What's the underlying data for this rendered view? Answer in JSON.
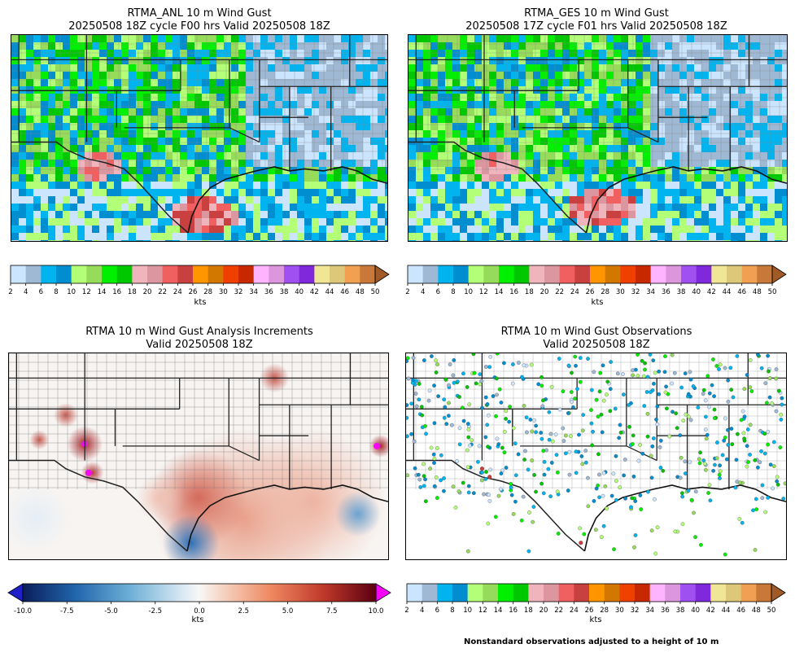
{
  "panels": [
    {
      "title_line1": "RTMA_ANL 10 m Wind Gust",
      "title_line2": "20250508 18Z cycle F00 hrs Valid 20250508 18Z"
    },
    {
      "title_line1": "RTMA_GES 10 m Wind Gust",
      "title_line2": "20250508 17Z cycle F01 hrs Valid 20250508 18Z"
    },
    {
      "title_line1": "RTMA 10 m Wind Gust Analysis Increments",
      "title_line2": "Valid 20250508 18Z"
    },
    {
      "title_line1": "RTMA 10 m Wind Gust Observations",
      "title_line2": "Valid 20250508 18Z"
    }
  ],
  "colorbar_units": "kts",
  "footnote": "Nonstandard observations adjusted to a height of 10 m",
  "chart_data": [
    {
      "type": "heatmap",
      "name": "",
      "colorbar": {
        "type": "discrete",
        "min": 2,
        "max": 50,
        "step": 2,
        "extend": "max",
        "ticks": [
          2,
          4,
          6,
          8,
          10,
          12,
          14,
          16,
          18,
          20,
          22,
          24,
          26,
          28,
          30,
          32,
          34,
          36,
          38,
          40,
          42,
          44,
          46,
          48,
          50
        ],
        "colors": [
          "#cce5ff",
          "#9fb8d4",
          "#00b4f0",
          "#008ed0",
          "#b4ff78",
          "#96dc5a",
          "#00f000",
          "#00c800",
          "#f0b4bc",
          "#dc96a0",
          "#f06060",
          "#c84040",
          "#ff9600",
          "#d27800",
          "#f04000",
          "#c82800",
          "#ffb4ff",
          "#dc96dc",
          "#a050f0",
          "#8028dc",
          "#f0e696",
          "#dcc878",
          "#f0a050",
          "#c87838"
        ],
        "over_color": "#a05a28"
      },
      "region": "South-central United States (Texas, Oklahoma, Louisiana, Gulf Coast)",
      "dominant_range_kts": [
        4,
        18
      ],
      "max_region": "Southwest Texas / south Texas coast 20-30 kts"
    },
    {
      "type": "heatmap",
      "name": "",
      "colorbar": {
        "type": "discrete",
        "min": 2,
        "max": 50,
        "step": 2,
        "extend": "max",
        "ticks": [
          2,
          4,
          6,
          8,
          10,
          12,
          14,
          16,
          18,
          20,
          22,
          24,
          26,
          28,
          30,
          32,
          34,
          36,
          38,
          40,
          42,
          44,
          46,
          48,
          50
        ]
      },
      "dominant_range_kts": [
        4,
        18
      ],
      "max_region": "South Texas coast near Corpus Christi 20-30 kts"
    },
    {
      "type": "heatmap",
      "name": "",
      "colorbar": {
        "type": "continuous",
        "min": -10,
        "max": 10,
        "extend": "both",
        "ticks": [
          -10.0,
          -7.5,
          -5.0,
          -2.5,
          0.0,
          2.5,
          5.0,
          7.5,
          10.0
        ],
        "tick_labels": [
          "-10.0",
          "-7.5",
          "-5.0",
          "-2.5",
          "0.0",
          "2.5",
          "5.0",
          "7.5",
          "10.0"
        ],
        "cmap": "RdBu_r",
        "under_color": "#2020c8",
        "over_color": "#ff00ff"
      },
      "features": [
        "negative increments near south Texas coast (about -5)",
        "positive increments across Gulf and east Texas (about +4)"
      ]
    },
    {
      "type": "scatter",
      "name": "",
      "colorbar": {
        "type": "discrete",
        "min": 2,
        "max": 50,
        "step": 2,
        "extend": "max",
        "ticks": [
          2,
          4,
          6,
          8,
          10,
          12,
          14,
          16,
          18,
          20,
          22,
          24,
          26,
          28,
          30,
          32,
          34,
          36,
          38,
          40,
          42,
          44,
          46,
          48,
          50
        ]
      },
      "dominant_range_kts": [
        4,
        18
      ]
    }
  ]
}
